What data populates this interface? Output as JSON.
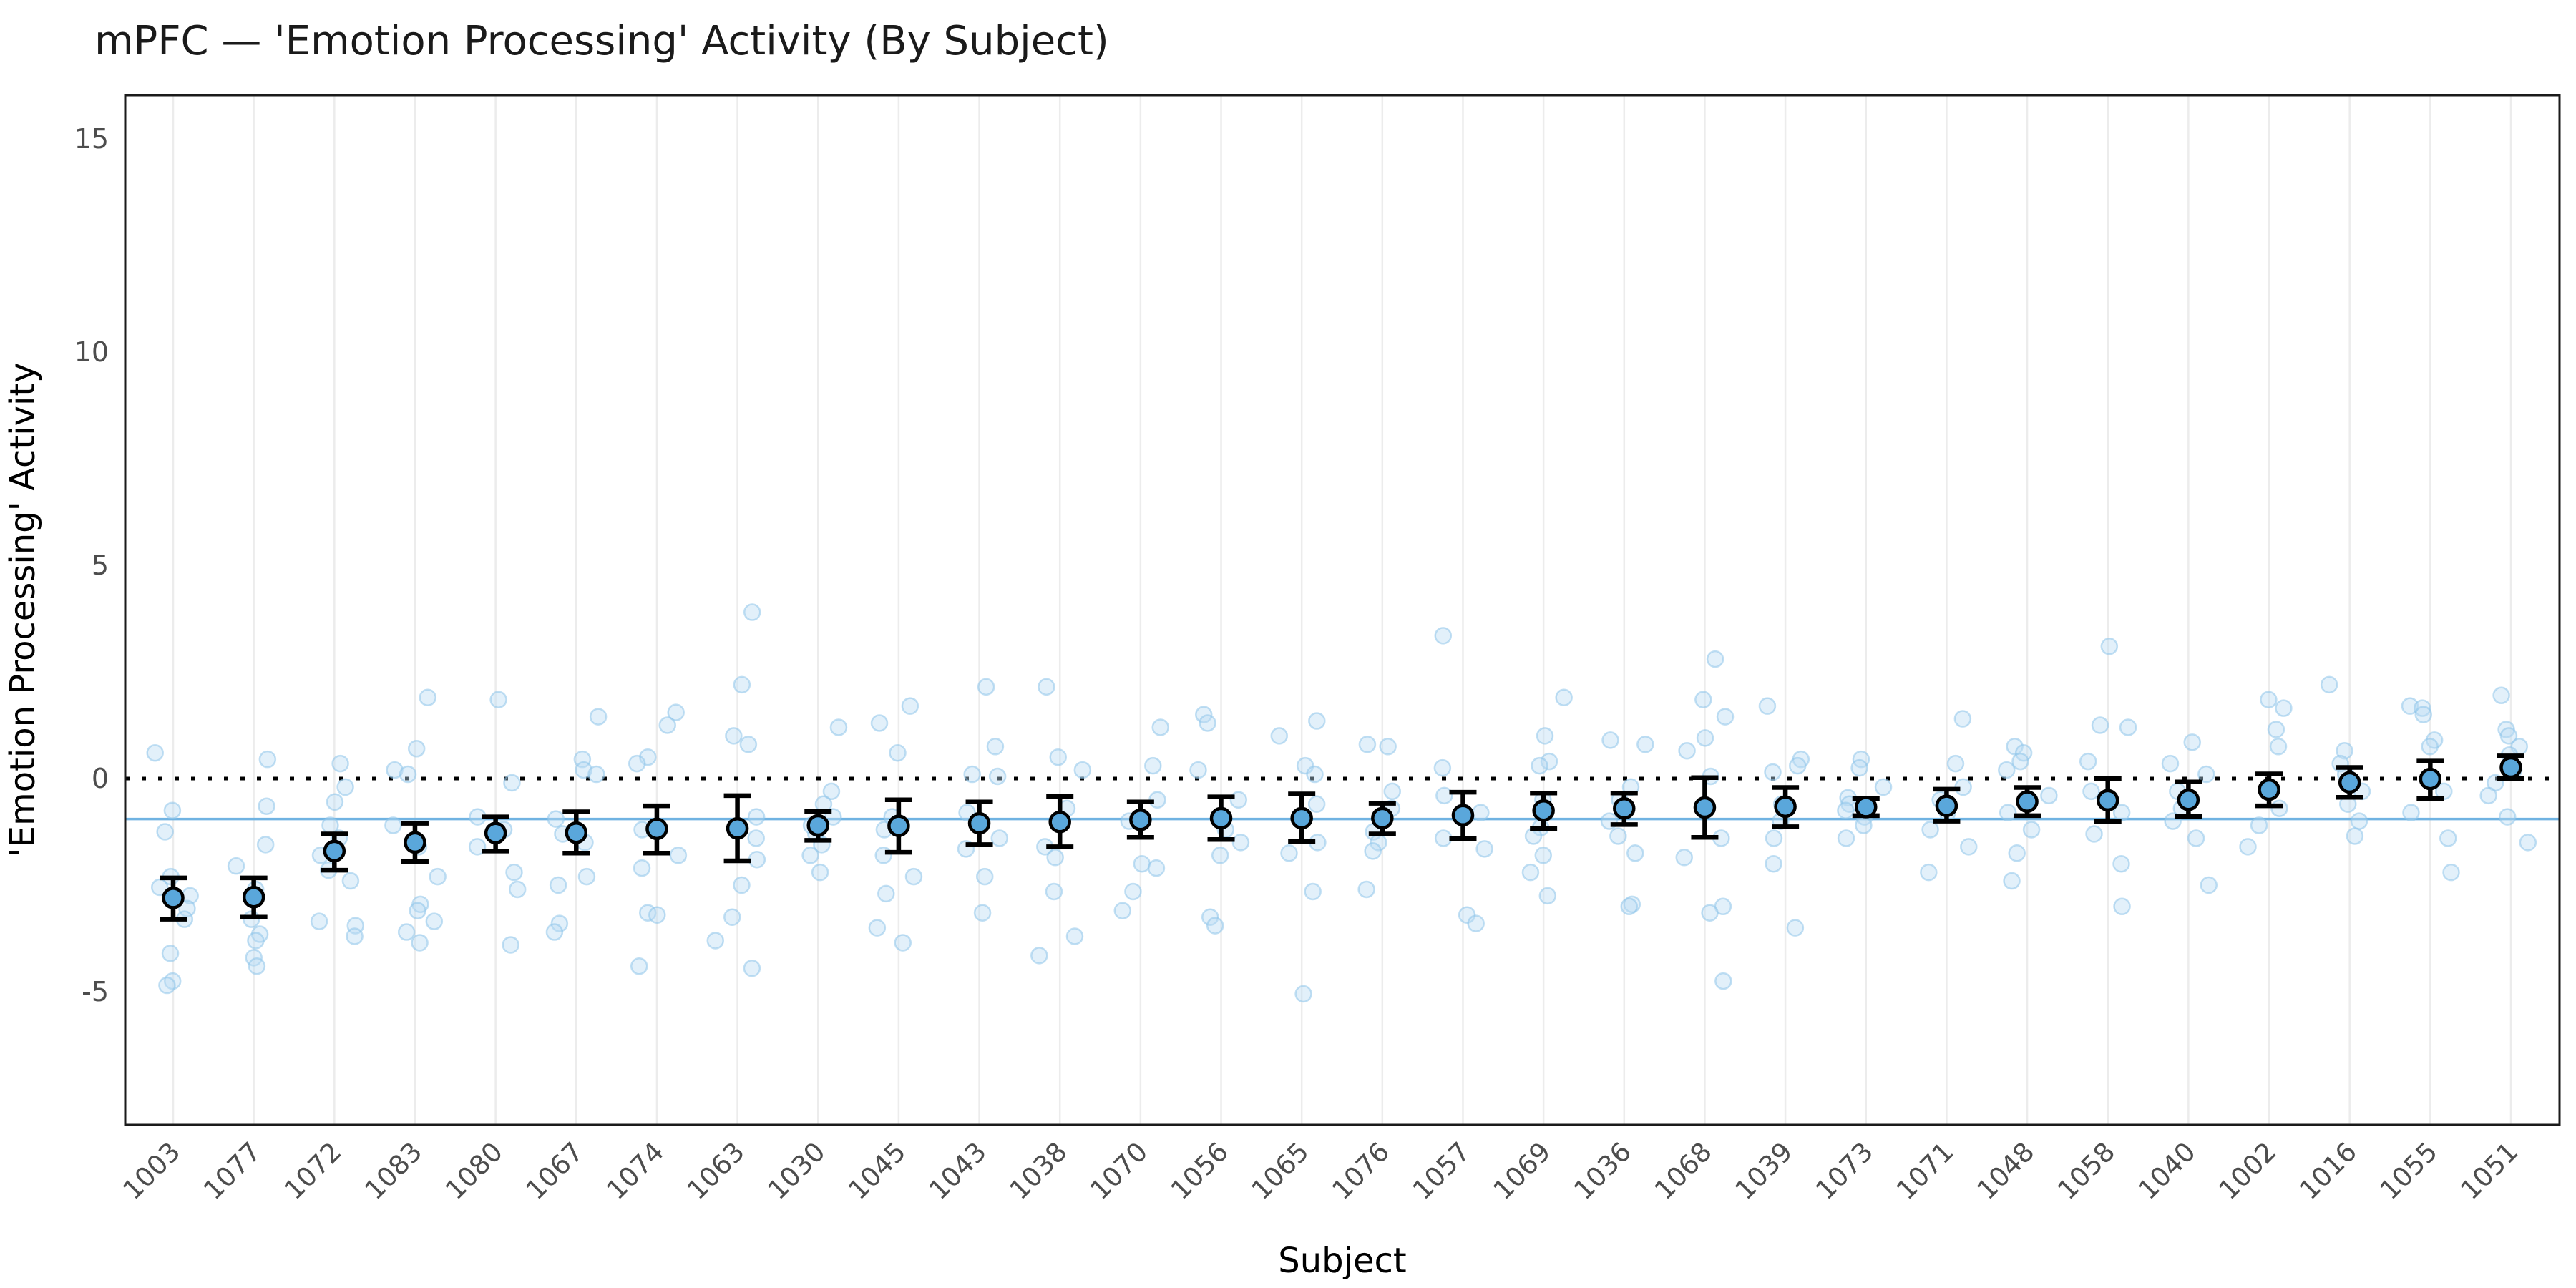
{
  "title": "mPFC — 'Emotion Processing' Activity (By Subject)",
  "x_axis": {
    "label": "Subject"
  },
  "y_axis": {
    "label": "'Emotion Processing' Activity"
  },
  "colors": {
    "mean_point_fill": "#5aa7db",
    "mean_point_stroke": "#000000",
    "raw_point_fill": "#b9dcf4",
    "raw_point_stroke": "#8ec4ea",
    "grand_mean_line": "#70b3e2",
    "zero_line": "#000000",
    "gridline": "#ececec",
    "panel_border": "#1a1a1a",
    "tick_label": "#4d4d4d",
    "title_color": "#1a1a1a"
  },
  "chart_data": {
    "type": "scatter",
    "title": "mPFC — 'Emotion Processing' Activity (By Subject)",
    "xlabel": "Subject",
    "ylabel": "'Emotion Processing' Activity",
    "ylim": [
      -8.2,
      16.1
    ],
    "yticks": [
      -5,
      0,
      5,
      10,
      15
    ],
    "grid": "vertical-major-only",
    "legend_position": "none",
    "reference_lines": [
      {
        "name": "zero-line",
        "value": 0,
        "style": "dotted",
        "color": "#000000"
      },
      {
        "name": "grand-mean-line",
        "value": -0.95,
        "style": "solid",
        "color": "#70b3e2"
      }
    ],
    "point_meaning": "subject mean with 95% CI error bar; faint points are individual trials",
    "subjects": [
      {
        "id": "1003",
        "mean": -2.8,
        "ci_low": -3.3,
        "ci_high": -2.33,
        "raw": [
          0.6,
          -0.75,
          -1.25,
          -2.3,
          -2.55,
          -2.75,
          -3.05,
          -3.3,
          -4.1,
          -4.75,
          -4.85
        ]
      },
      {
        "id": "1077",
        "mean": -2.78,
        "ci_low": -3.25,
        "ci_high": -2.33,
        "raw": [
          0.45,
          -0.65,
          -1.55,
          -2.05,
          -2.6,
          -3.3,
          -3.65,
          -3.8,
          -4.2,
          -4.4
        ]
      },
      {
        "id": "1072",
        "mean": -1.7,
        "ci_low": -2.15,
        "ci_high": -1.3,
        "raw": [
          0.35,
          -0.2,
          -0.55,
          -1.1,
          -1.4,
          -1.8,
          -2.15,
          -2.4,
          -3.35,
          -3.45,
          -3.7
        ]
      },
      {
        "id": "1083",
        "mean": -1.5,
        "ci_low": -1.95,
        "ci_high": -1.05,
        "raw": [
          1.9,
          0.7,
          0.2,
          0.1,
          -1.1,
          -1.6,
          -2.3,
          -2.95,
          -3.1,
          -3.35,
          -3.6,
          -3.85
        ]
      },
      {
        "id": "1080",
        "mean": -1.28,
        "ci_low": -1.7,
        "ci_high": -0.9,
        "raw": [
          1.85,
          -0.1,
          -0.9,
          -1.2,
          -1.6,
          -2.2,
          -2.6,
          -3.9
        ]
      },
      {
        "id": "1067",
        "mean": -1.27,
        "ci_low": -1.75,
        "ci_high": -0.78,
        "raw": [
          1.45,
          0.45,
          0.2,
          0.1,
          -0.95,
          -1.3,
          -1.5,
          -2.3,
          -2.5,
          -3.4,
          -3.6
        ]
      },
      {
        "id": "1074",
        "mean": -1.18,
        "ci_low": -1.75,
        "ci_high": -0.64,
        "raw": [
          1.55,
          1.25,
          0.5,
          0.35,
          -1.2,
          -1.8,
          -2.1,
          -3.15,
          -3.2,
          -4.4
        ]
      },
      {
        "id": "1063",
        "mean": -1.17,
        "ci_low": -1.93,
        "ci_high": -0.4,
        "raw": [
          3.9,
          2.2,
          1.0,
          0.8,
          -0.9,
          -1.4,
          -1.9,
          -2.5,
          -3.25,
          -3.8,
          -4.45
        ]
      },
      {
        "id": "1030",
        "mean": -1.1,
        "ci_low": -1.45,
        "ci_high": -0.77,
        "raw": [
          1.2,
          -0.3,
          -0.6,
          -0.9,
          -1.1,
          -1.3,
          -1.55,
          -1.8,
          -2.2
        ]
      },
      {
        "id": "1045",
        "mean": -1.11,
        "ci_low": -1.73,
        "ci_high": -0.5,
        "raw": [
          1.7,
          1.3,
          0.6,
          -0.9,
          -1.2,
          -1.8,
          -2.3,
          -2.7,
          -3.5,
          -3.85
        ]
      },
      {
        "id": "1043",
        "mean": -1.05,
        "ci_low": -1.55,
        "ci_high": -0.55,
        "raw": [
          2.15,
          0.75,
          0.1,
          0.05,
          -0.8,
          -1.4,
          -1.65,
          -2.3,
          -3.15
        ]
      },
      {
        "id": "1038",
        "mean": -1.02,
        "ci_low": -1.6,
        "ci_high": -0.42,
        "raw": [
          2.15,
          0.5,
          0.2,
          -0.7,
          -1.6,
          -1.85,
          -2.65,
          -3.7,
          -4.15
        ]
      },
      {
        "id": "1070",
        "mean": -0.97,
        "ci_low": -1.38,
        "ci_high": -0.55,
        "raw": [
          1.2,
          0.3,
          -0.5,
          -1.0,
          -2.0,
          -2.1,
          -2.65,
          -3.1
        ]
      },
      {
        "id": "1056",
        "mean": -0.93,
        "ci_low": -1.43,
        "ci_high": -0.43,
        "raw": [
          1.5,
          1.3,
          0.2,
          -0.5,
          -1.2,
          -1.5,
          -1.8,
          -3.25,
          -3.45
        ]
      },
      {
        "id": "1065",
        "mean": -0.93,
        "ci_low": -1.48,
        "ci_high": -0.36,
        "raw": [
          1.35,
          1.0,
          0.3,
          0.1,
          -0.6,
          -1.5,
          -1.75,
          -2.65,
          -5.05
        ]
      },
      {
        "id": "1076",
        "mean": -0.93,
        "ci_low": -1.3,
        "ci_high": -0.58,
        "raw": [
          0.8,
          0.75,
          -0.3,
          -0.7,
          -1.25,
          -1.5,
          -1.7,
          -2.6
        ]
      },
      {
        "id": "1057",
        "mean": -0.86,
        "ci_low": -1.41,
        "ci_high": -0.32,
        "raw": [
          3.35,
          0.25,
          -0.4,
          -0.8,
          -1.4,
          -1.65,
          -3.2,
          -3.4
        ]
      },
      {
        "id": "1069",
        "mean": -0.75,
        "ci_low": -1.17,
        "ci_high": -0.34,
        "raw": [
          1.9,
          1.0,
          0.4,
          0.3,
          -0.5,
          -1.15,
          -1.35,
          -1.8,
          -2.2,
          -2.75
        ]
      },
      {
        "id": "1036",
        "mean": -0.7,
        "ci_low": -1.08,
        "ci_high": -0.34,
        "raw": [
          0.9,
          0.8,
          -0.2,
          -0.5,
          -1.0,
          -1.35,
          -1.75,
          -2.95,
          -3.0
        ]
      },
      {
        "id": "1068",
        "mean": -0.68,
        "ci_low": -1.38,
        "ci_high": 0.02,
        "raw": [
          2.8,
          1.85,
          1.45,
          0.95,
          0.65,
          0.05,
          -1.4,
          -1.85,
          -3.0,
          -3.15,
          -4.75
        ]
      },
      {
        "id": "1039",
        "mean": -0.66,
        "ci_low": -1.13,
        "ci_high": -0.21,
        "raw": [
          1.7,
          0.45,
          0.3,
          0.15,
          -0.6,
          -1.0,
          -1.4,
          -2.0,
          -3.5
        ]
      },
      {
        "id": "1073",
        "mean": -0.67,
        "ci_low": -0.87,
        "ci_high": -0.47,
        "raw": [
          0.45,
          0.25,
          -0.2,
          -0.45,
          -0.6,
          -0.75,
          -0.9,
          -1.1,
          -1.4
        ]
      },
      {
        "id": "1071",
        "mean": -0.64,
        "ci_low": -1.0,
        "ci_high": -0.25,
        "raw": [
          1.4,
          0.35,
          -0.2,
          -0.5,
          -0.8,
          -1.2,
          -1.6,
          -2.2
        ]
      },
      {
        "id": "1048",
        "mean": -0.54,
        "ci_low": -0.87,
        "ci_high": -0.21,
        "raw": [
          0.75,
          0.6,
          0.4,
          0.2,
          -0.4,
          -0.8,
          -1.2,
          -1.75,
          -2.4
        ]
      },
      {
        "id": "1058",
        "mean": -0.51,
        "ci_low": -1.01,
        "ci_high": 0.0,
        "raw": [
          3.1,
          1.25,
          1.2,
          0.4,
          -0.3,
          -0.8,
          -1.3,
          -2.0,
          -3.0
        ]
      },
      {
        "id": "1040",
        "mean": -0.5,
        "ci_low": -0.89,
        "ci_high": -0.08,
        "raw": [
          0.85,
          0.35,
          0.1,
          -0.3,
          -0.7,
          -1.0,
          -1.4,
          -2.5
        ]
      },
      {
        "id": "1002",
        "mean": -0.26,
        "ci_low": -0.64,
        "ci_high": 0.11,
        "raw": [
          1.85,
          1.65,
          1.15,
          0.75,
          -0.3,
          -0.7,
          -1.1,
          -1.6
        ]
      },
      {
        "id": "1016",
        "mean": -0.09,
        "ci_low": -0.44,
        "ci_high": 0.26,
        "raw": [
          2.2,
          0.65,
          0.35,
          0.1,
          -0.3,
          -0.6,
          -1.0,
          -1.35
        ]
      },
      {
        "id": "1055",
        "mean": -0.01,
        "ci_low": -0.47,
        "ci_high": 0.41,
        "raw": [
          1.7,
          1.65,
          1.5,
          0.9,
          0.75,
          -0.3,
          -0.8,
          -1.4,
          -2.2
        ]
      },
      {
        "id": "1051",
        "mean": 0.26,
        "ci_low": 0.0,
        "ci_high": 0.53,
        "raw": [
          1.95,
          1.15,
          1.0,
          0.75,
          0.55,
          0.2,
          -0.1,
          -0.4,
          -0.9,
          -1.5
        ]
      }
    ]
  }
}
